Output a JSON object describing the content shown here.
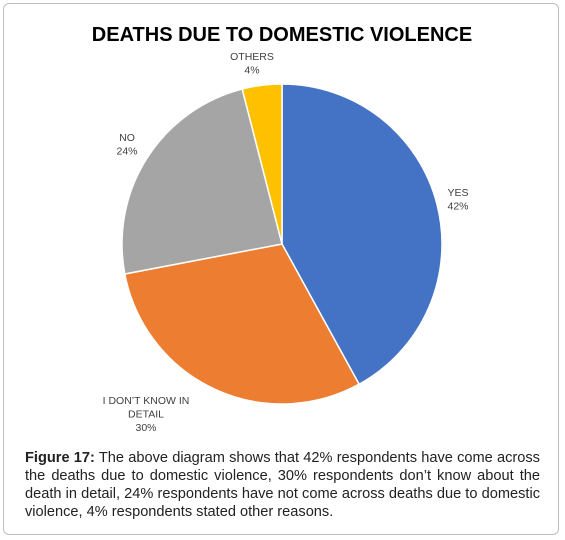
{
  "chart_data": {
    "type": "pie",
    "title": "DEATHS DUE TO DOMESTIC VIOLENCE",
    "slices": [
      {
        "category": "YES",
        "value": 42,
        "label_lines": [
          "YES",
          "42%"
        ],
        "color": "#4472C4"
      },
      {
        "category": "I DON’T KNOW IN DETAIL",
        "value": 30,
        "label_lines": [
          "I DON’T KNOW IN",
          "DETAIL",
          "30%"
        ],
        "color": "#ED7D31"
      },
      {
        "category": "NO",
        "value": 24,
        "label_lines": [
          "NO",
          "24%"
        ],
        "color": "#A5A5A5"
      },
      {
        "category": "OTHERS",
        "value": 4,
        "label_lines": [
          "OTHERS",
          "4%"
        ],
        "color": "#FFC000"
      }
    ],
    "start_angle_deg": 0,
    "direction": "clockwise",
    "legend": "none"
  },
  "caption": {
    "label": "Figure 17:",
    "text": " The above diagram shows that 42% respondents have come across the deaths due to domestic violence, 30% respondents don’t know about the death in detail, 24% respondents have not come across deaths due to domestic violence, 4% respondents stated other reasons."
  }
}
